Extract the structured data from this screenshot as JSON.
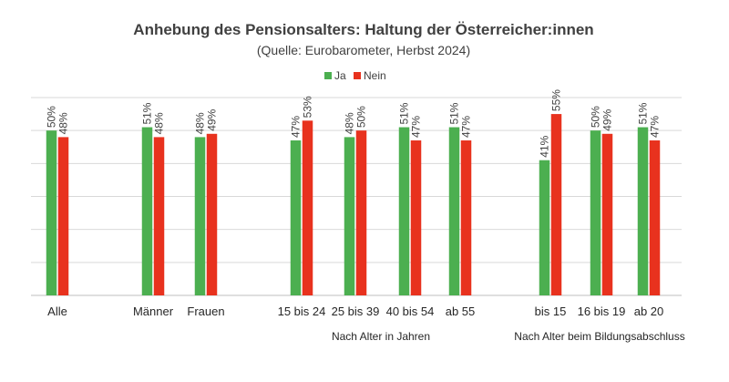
{
  "chart_data": {
    "type": "bar",
    "title": "Anhebung des Pensionsalters: Haltung der Österreicher:innen",
    "subtitle": "(Quelle: Eurobarometer, Herbst 2024)",
    "categories": [
      "Alle",
      "Männer",
      "Frauen",
      "15 bis 24",
      "25 bis 39",
      "40 bis 54",
      "ab 55",
      "bis 15",
      "16 bis 19",
      "ab 20"
    ],
    "series": [
      {
        "name": "Ja",
        "color": "#4caf50",
        "values": [
          50,
          51,
          48,
          47,
          48,
          51,
          51,
          41,
          50,
          51
        ]
      },
      {
        "name": "Nein",
        "color": "#e8321e",
        "values": [
          48,
          48,
          49,
          53,
          50,
          47,
          47,
          55,
          49,
          47
        ]
      }
    ],
    "value_suffix": "%",
    "groups": [
      {
        "label": "Nach Alter in Jahren",
        "categories": [
          "15 bis 24",
          "25 bis 39",
          "40 bis 54",
          "ab 55"
        ]
      },
      {
        "label": "Nach Alter beim Bildungsabschluss",
        "categories": [
          "bis 15",
          "16 bis 19",
          "ab 20"
        ]
      }
    ],
    "ylim": [
      0,
      60
    ],
    "grid": true,
    "legend_position": "top-center",
    "xlabel": "",
    "ylabel": ""
  }
}
